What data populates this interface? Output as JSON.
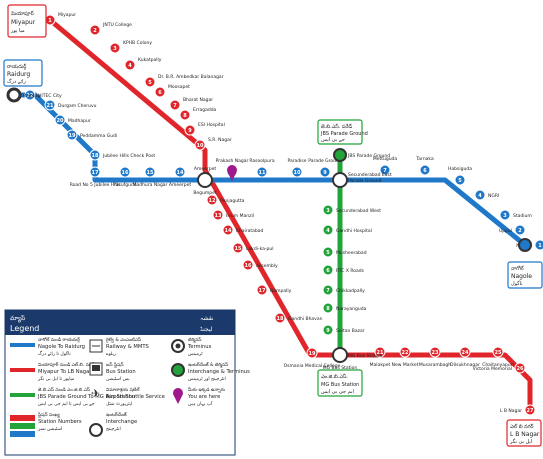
{
  "map": {
    "line_colors": {
      "blue": "#1f78c8",
      "red": "#e0262b",
      "green": "#23a43a",
      "terminal_dark": "#333333"
    },
    "terminal_labels": {
      "miyapur": [
        "మియాపూర్",
        "Miyapur",
        "میا پور"
      ],
      "raidurg": [
        "రాయదుర్గ్",
        "Raidurg",
        "رائے درگ"
      ],
      "nagole": [
        "నాగోల్",
        "Nagole",
        "ناگول"
      ],
      "lbnagar": [
        "ఎల్ బి నగర్",
        "L B Nagar",
        "ایل بی نگر"
      ],
      "jbs": [
        "జె.బి.ఎస్. పరేడ్",
        "JBS Parade Ground",
        "جے بی ایس"
      ],
      "mgbs": [
        "ఎం.జి.బి.ఎస్.",
        "MG Bus Station",
        "ایم جی بی ایس"
      ]
    },
    "red_stations": [
      {
        "num": "1",
        "label": "Miyapur"
      },
      {
        "num": "2",
        "label": "JNTU College"
      },
      {
        "num": "3",
        "label": "KPHB Colony"
      },
      {
        "num": "4",
        "label": "Kukatpally"
      },
      {
        "num": "5",
        "label": "Dr. B.R. Ambedkar Balanagar"
      },
      {
        "num": "6",
        "label": "Moosapet"
      },
      {
        "num": "7",
        "label": "Bharat Nagar"
      },
      {
        "num": "8",
        "label": "Erragadda"
      },
      {
        "num": "9",
        "label": "ESI Hospital"
      },
      {
        "num": "10",
        "label": "S.R. Nagar"
      },
      {
        "num": "11",
        "label": "Ameerpet"
      },
      {
        "num": "12",
        "label": "Punjagutta"
      },
      {
        "num": "13",
        "label": "Irrum Manzil"
      },
      {
        "num": "14",
        "label": "Khairatabad"
      },
      {
        "num": "15",
        "label": "Lakdi-ka-pul"
      },
      {
        "num": "16",
        "label": "Assembly"
      },
      {
        "num": "17",
        "label": "Nampally"
      },
      {
        "num": "18",
        "label": "Gandhi Bhavan"
      },
      {
        "num": "19",
        "label": "Osmania Medical College"
      },
      {
        "num": "20",
        "label": "MG Bus Station"
      },
      {
        "num": "21",
        "label": "Malakpet"
      },
      {
        "num": "22",
        "label": "New Market"
      },
      {
        "num": "23",
        "label": "Musarambagh"
      },
      {
        "num": "24",
        "label": "Dilsukhnagar"
      },
      {
        "num": "25",
        "label": "Chaitanyapuri"
      },
      {
        "num": "26",
        "label": "Victoria Memorial"
      },
      {
        "num": "27",
        "label": "L B Nagar"
      }
    ],
    "blue_stations": [
      {
        "num": "1",
        "label": "Nagole"
      },
      {
        "num": "2",
        "label": "Uppal"
      },
      {
        "num": "3",
        "label": "Stadium"
      },
      {
        "num": "4",
        "label": "NGRI"
      },
      {
        "num": "5",
        "label": "Habsiguda"
      },
      {
        "num": "6",
        "label": "Tarnaka"
      },
      {
        "num": "7",
        "label": "Mettuguda"
      },
      {
        "num": "8",
        "label": "Secunderabad East"
      },
      {
        "num": "9",
        "label": "Parade Ground"
      },
      {
        "num": "10",
        "label": "Paradise"
      },
      {
        "num": "11",
        "label": "Rasoolpura"
      },
      {
        "num": "12",
        "label": "Prakash Nagar"
      },
      {
        "num": "13",
        "label": "Begumpet"
      },
      {
        "num": "14",
        "label": "Ameerpet"
      },
      {
        "num": "15",
        "label": "Madhura Nagar"
      },
      {
        "num": "16",
        "label": "Yusufguda"
      },
      {
        "num": "17",
        "label": "Road No 5 Jubilee Hills"
      },
      {
        "num": "18",
        "label": "Jubilee Hills Check Post"
      },
      {
        "num": "19",
        "label": "Peddamma Gudi"
      },
      {
        "num": "20",
        "label": "Madhapur"
      },
      {
        "num": "21",
        "label": "Durgam Cheruvu"
      },
      {
        "num": "22",
        "label": "HITEC City"
      },
      {
        "num": "23",
        "label": "Raidurg"
      }
    ],
    "green_stations": [
      {
        "num": "1",
        "label": "JBS Parade Ground"
      },
      {
        "num": "2",
        "label": "Parade Ground"
      },
      {
        "num": "3",
        "label": "Secunderabad West"
      },
      {
        "num": "4",
        "label": "Gandhi Hospital"
      },
      {
        "num": "5",
        "label": "Musheerabad"
      },
      {
        "num": "6",
        "label": "RTC X Roads"
      },
      {
        "num": "7",
        "label": "Chikkadpally"
      },
      {
        "num": "8",
        "label": "Narayanguda"
      },
      {
        "num": "9",
        "label": "Sultan Bazar"
      },
      {
        "num": "10",
        "label": "MG Bus Station"
      }
    ]
  },
  "legend": {
    "title_left": "మ్యాప్",
    "title_right": "نقشہ",
    "title_en": "Legend",
    "title_ur": "لیجنڈ",
    "items": [
      {
        "telugu": "నాగోల్ నుండి రాయదుర్గ్",
        "english": "Nagole To Raidurg",
        "urdu": "ناگول تا رائے درگ"
      },
      {
        "telugu": "మియాపూర్ నుండి ఎల్.బి. నగర్",
        "english": "Miyapur To LB Nagar",
        "urdu": "میاپور تا ایل بی نگر"
      },
      {
        "telugu": "జె.బి.ఎస్ నుండి ఎం.జి.బి.ఎస్",
        "english": "JBS Parade Ground To MG Bus Station",
        "urdu": "جے بی ایس تا ایم جی بی ایس"
      },
      {
        "telugu": "స్టేషన్ సంఖ్య",
        "english": "Station Numbers",
        "urdu": "اسٹیشن نمبر"
      },
      {
        "telugu": "రైల్వే & ఎంఎంటిఎస్",
        "english": "Railway & MMTS",
        "urdu": "ریلوے"
      },
      {
        "telugu": "బస్ స్టేషన్",
        "english": "Bus Station",
        "urdu": "بس اسٹیشن"
      },
      {
        "telugu": "విమానాశ్రయ షటిల్",
        "english": "Airport Shuttle Service",
        "urdu": "ایئرپورٹ شٹل"
      },
      {
        "telugu": "ఇంటర్‌చేంజ్",
        "english": "Interchange",
        "urdu": "انٹرچینج"
      },
      {
        "telugu": "టెర్మినస్",
        "english": "Terminus",
        "urdu": "ٹرمینس"
      },
      {
        "telugu": "ఇంటర్‌చేంజ్ & టెర్మినస్",
        "english": "Interchange & Terminus",
        "urdu": "انٹرچینج اور ٹرمینس"
      },
      {
        "telugu": "మీరు ఇక్కడ ఉన్నారు",
        "english": "You are here",
        "urdu": "آپ یہاں ہیں"
      }
    ]
  }
}
